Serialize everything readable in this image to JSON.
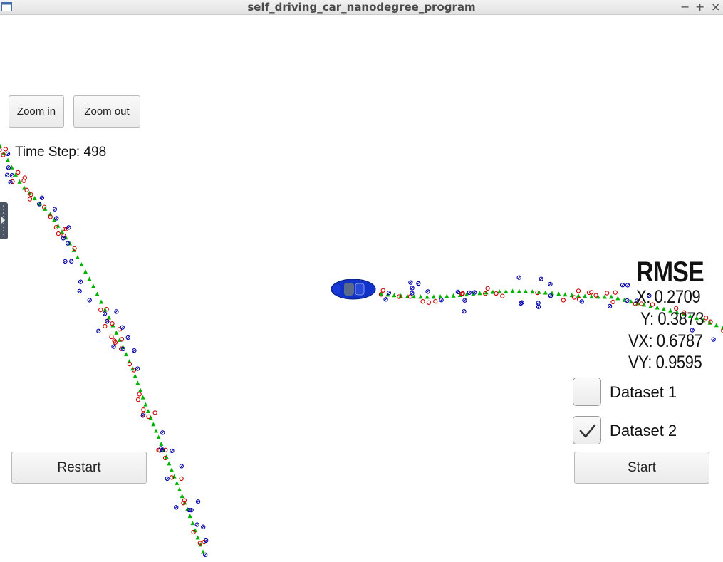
{
  "window": {
    "title": "self_driving_car_nanodegree_program",
    "buttons": {
      "minimize": "−",
      "maximize": "+",
      "close": "×"
    }
  },
  "toolbar": {
    "zoom_in_label": "Zoom in",
    "zoom_out_label": "Zoom out"
  },
  "status": {
    "time_step": "Time Step: 498"
  },
  "rmse": {
    "title": "RMSE",
    "x": "X: 0.2709",
    "y": "Y: 0.3873",
    "vx": "VX: 0.6787",
    "vy": "VY: 0.9595"
  },
  "datasets": [
    {
      "label": "Dataset 1",
      "checked": false
    },
    {
      "label": "Dataset 2",
      "checked": true
    }
  ],
  "controls": {
    "restart_label": "Restart",
    "start_label": "Start"
  },
  "colors": {
    "ground_truth": "#00b300",
    "lidar": "#cc0000",
    "radar": "#0000a8",
    "car": "#1032c8",
    "legend_markers": {
      "ground_truth": "triangle",
      "lidar": "circle",
      "radar": "circle-with-arrow"
    }
  }
}
